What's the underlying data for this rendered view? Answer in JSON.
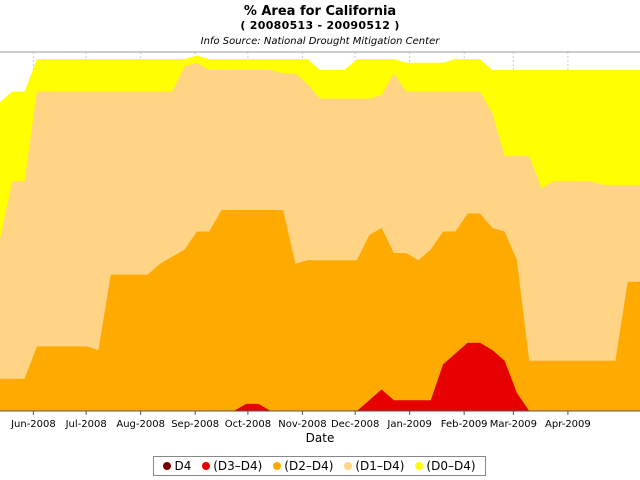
{
  "chart_data": {
    "type": "area",
    "title": "% Area for California",
    "subtitle": "( 20080513 - 20090512 )",
    "source": "Info Source:  National Drought Mitigation Center",
    "xlabel": "Date",
    "ylabel": "",
    "ylim": [
      0,
      100
    ],
    "x": [
      "2008-05-13",
      "2008-05-20",
      "2008-05-27",
      "2008-06-03",
      "2008-06-10",
      "2008-06-17",
      "2008-06-24",
      "2008-07-01",
      "2008-07-08",
      "2008-07-15",
      "2008-07-22",
      "2008-07-29",
      "2008-08-05",
      "2008-08-12",
      "2008-08-19",
      "2008-08-26",
      "2008-09-02",
      "2008-09-09",
      "2008-09-16",
      "2008-09-23",
      "2008-09-30",
      "2008-10-07",
      "2008-10-14",
      "2008-10-21",
      "2008-10-28",
      "2008-11-04",
      "2008-11-11",
      "2008-11-18",
      "2008-11-25",
      "2008-12-02",
      "2008-12-09",
      "2008-12-16",
      "2008-12-23",
      "2008-12-30",
      "2009-01-06",
      "2009-01-13",
      "2009-01-20",
      "2009-01-27",
      "2009-02-03",
      "2009-02-10",
      "2009-02-17",
      "2009-02-24",
      "2009-03-03",
      "2009-03-10",
      "2009-03-17",
      "2009-03-24",
      "2009-03-31",
      "2009-04-07",
      "2009-04-14",
      "2009-04-21",
      "2009-04-28",
      "2009-05-05",
      "2009-05-12"
    ],
    "x_ticks": [
      "Jun-2008",
      "Jul-2008",
      "Aug-2008",
      "Sep-2008",
      "Oct-2008",
      "Nov-2008",
      "Dec-2008",
      "Jan-2009",
      "Feb-2009",
      "Mar-2009",
      "Apr-2009"
    ],
    "x_tick_dates": [
      "2008-06-01",
      "2008-07-01",
      "2008-08-01",
      "2008-09-01",
      "2008-10-01",
      "2008-11-01",
      "2008-12-01",
      "2009-01-01",
      "2009-02-01",
      "2009-03-01",
      "2009-04-01"
    ],
    "x_range": [
      "2008-05-13",
      "2009-05-12"
    ],
    "grid": true,
    "legend_position": "bottom",
    "series": [
      {
        "name": "(D0–D4)",
        "color": "#ffff00",
        "values": [
          86,
          89,
          89,
          98,
          98,
          98,
          98,
          98,
          98,
          98,
          98,
          98,
          98,
          98,
          98,
          98,
          99,
          98,
          98,
          98,
          98,
          98,
          98,
          98,
          98,
          98,
          95,
          95,
          95,
          98,
          98,
          98,
          98,
          97,
          97,
          97,
          97,
          98,
          98,
          98,
          95,
          95,
          95,
          95,
          95,
          95,
          95,
          95,
          95,
          95,
          95,
          95,
          95
        ]
      },
      {
        "name": "(D1–D4)",
        "color": "#ffd485",
        "values": [
          48,
          64,
          64,
          89,
          89,
          89,
          89,
          89,
          89,
          89,
          89,
          89,
          89,
          89,
          89,
          96,
          97,
          95,
          95,
          95,
          95,
          95,
          95,
          94,
          94,
          91,
          87,
          87,
          87,
          87,
          87,
          88,
          94,
          89,
          89,
          89,
          89,
          89,
          89,
          89,
          83,
          71,
          71,
          71,
          62,
          64,
          64,
          64,
          64,
          63,
          63,
          63,
          63
        ]
      },
      {
        "name": "(D2–D4)",
        "color": "#ffaa00",
        "values": [
          9,
          9,
          9,
          18,
          18,
          18,
          18,
          18,
          17,
          38,
          38,
          38,
          38,
          41,
          43,
          45,
          50,
          50,
          56,
          56,
          56,
          56,
          56,
          56,
          41,
          42,
          42,
          42,
          42,
          42,
          49,
          51,
          44,
          44,
          42,
          45,
          50,
          50,
          55,
          55,
          51,
          50,
          42,
          14,
          14,
          14,
          14,
          14,
          14,
          14,
          14,
          36,
          36
        ]
      },
      {
        "name": "(D3–D4)",
        "color": "#e60000",
        "values": [
          0,
          0,
          0,
          0,
          0,
          0,
          0,
          0,
          0,
          0,
          0,
          0,
          0,
          0,
          0,
          0,
          0,
          0,
          0,
          0,
          2,
          2,
          0,
          0,
          0,
          0,
          0,
          0,
          0,
          0,
          3,
          6,
          3,
          3,
          3,
          3,
          13,
          16,
          19,
          19,
          17,
          14,
          5,
          0,
          0,
          0,
          0,
          0,
          0,
          0,
          0,
          0,
          0
        ]
      },
      {
        "name": "D4",
        "color": "#730000",
        "values": [
          0,
          0,
          0,
          0,
          0,
          0,
          0,
          0,
          0,
          0,
          0,
          0,
          0,
          0,
          0,
          0,
          0,
          0,
          0,
          0,
          0,
          0,
          0,
          0,
          0,
          0,
          0,
          0,
          0,
          0,
          0,
          0,
          0,
          0,
          0,
          0,
          0,
          0,
          0,
          0,
          0,
          0,
          0,
          0,
          0,
          0,
          0,
          0,
          0,
          0,
          0,
          0,
          0
        ]
      }
    ],
    "legend_order": [
      "D4",
      "(D3–D4)",
      "(D2–D4)",
      "(D1–D4)",
      "(D0–D4)"
    ]
  }
}
